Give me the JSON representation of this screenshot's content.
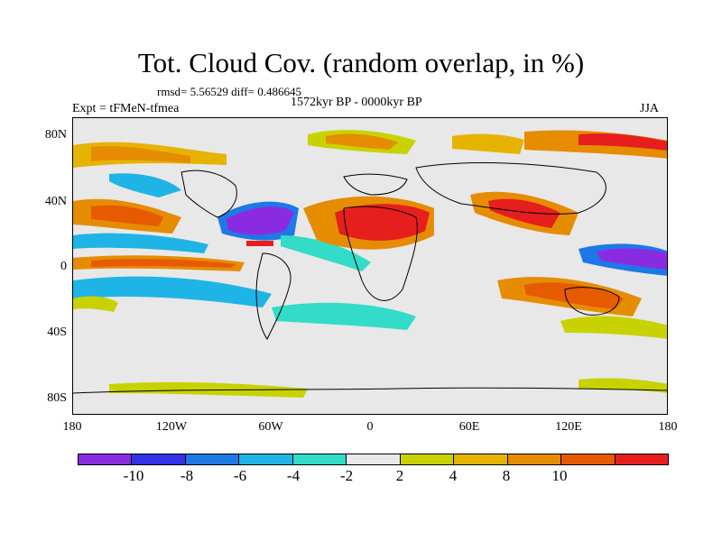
{
  "title": "Tot. Cloud Cov. (random overlap, in %)",
  "stats": "rmsd= 5.56529 diff= 0.486645",
  "period": "1572kyr BP - 0000kyr BP",
  "experiment": "Expt = tFMeN-tfmea",
  "season": "JJA",
  "lat_labels": [
    "80N",
    "40N",
    "0",
    "40S",
    "80S"
  ],
  "lon_labels": [
    "180",
    "120W",
    "60W",
    "0",
    "60E",
    "120E",
    "180"
  ],
  "colorbar": {
    "colors": [
      "#8a2be2",
      "#3232e6",
      "#1e78e6",
      "#1eb4e6",
      "#32dcc8",
      "#e8e8e8",
      "#c8d200",
      "#e6b400",
      "#e68c00",
      "#e65a00",
      "#e61e1e"
    ],
    "labels": [
      "-10",
      "-8",
      "-6",
      "-4",
      "-2",
      "2",
      "4",
      "8",
      "10"
    ]
  }
}
